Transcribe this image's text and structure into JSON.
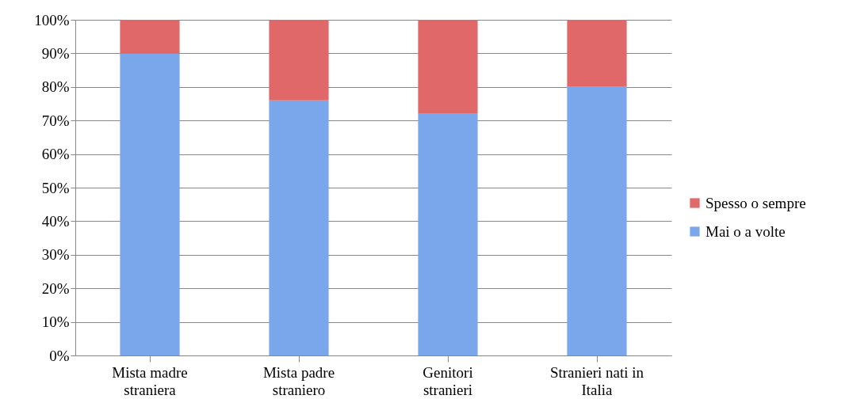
{
  "chart_data": {
    "type": "bar",
    "stacked": true,
    "categories": [
      "Mista madre straniera",
      "Mista padre straniero",
      "Genitori stranieri",
      "Stranieri nati in Italia"
    ],
    "series": [
      {
        "name": "Mai o a volte",
        "color": "#7aa7ec",
        "values": [
          90,
          76,
          72,
          80
        ]
      },
      {
        "name": "Spesso o sempre",
        "color": "#e06868",
        "values": [
          10,
          24,
          28,
          20
        ]
      }
    ],
    "ylim": [
      0,
      100
    ],
    "yticks": [
      {
        "value": 0,
        "label": "0%"
      },
      {
        "value": 10,
        "label": "10%"
      },
      {
        "value": 20,
        "label": "20%"
      },
      {
        "value": 30,
        "label": "30%"
      },
      {
        "value": 40,
        "label": "40%"
      },
      {
        "value": 50,
        "label": "50%"
      },
      {
        "value": 60,
        "label": "60%"
      },
      {
        "value": 70,
        "label": "70%"
      },
      {
        "value": 80,
        "label": "80%"
      },
      {
        "value": 90,
        "label": "90%"
      },
      {
        "value": 100,
        "label": "100%"
      }
    ],
    "grid": "y",
    "legend": "right"
  }
}
